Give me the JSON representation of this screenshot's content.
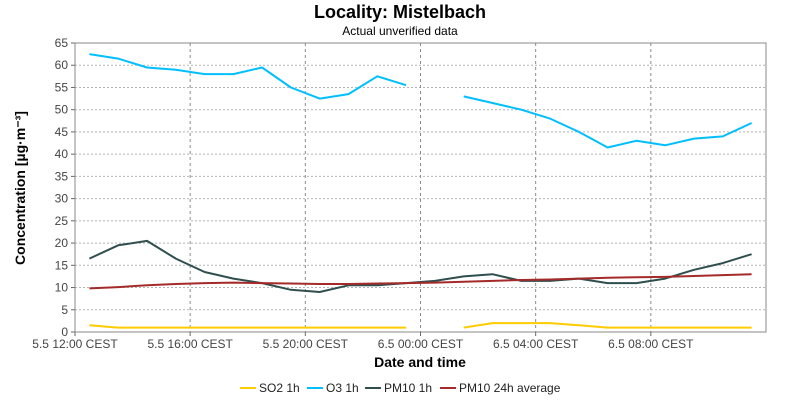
{
  "chart_data": {
    "type": "line",
    "title": "Locality: Mistelbach",
    "subtitle": "Actual unverified data",
    "xlabel": "Date and time",
    "ylabel": "Concentration [µg·m⁻³]",
    "ylim": [
      0,
      65
    ],
    "yticks": [
      0,
      5,
      10,
      15,
      20,
      25,
      30,
      35,
      40,
      45,
      50,
      55,
      60,
      65
    ],
    "xlim": [
      "5.5 12:00",
      "6.5 12:00"
    ],
    "xticks": [
      {
        "x": "5.5 12:00",
        "label": "5.5 12:00 CEST"
      },
      {
        "x": "5.5 16:00",
        "label": "5.5 16:00 CEST"
      },
      {
        "x": "5.5 20:00",
        "label": "5.5 20:00 CEST"
      },
      {
        "x": "6.5 00:00",
        "label": "6.5 00:00 CEST"
      },
      {
        "x": "6.5 04:00",
        "label": "6.5 04:00 CEST"
      },
      {
        "x": "6.5 08:00",
        "label": "6.5 08:00 CEST"
      }
    ],
    "grid": true,
    "legend_position": "bottom",
    "x": [
      "5.5 12:30",
      "5.5 13:30",
      "5.5 14:30",
      "5.5 15:30",
      "5.5 16:30",
      "5.5 17:30",
      "5.5 18:30",
      "5.5 19:30",
      "5.5 20:30",
      "5.5 21:30",
      "5.5 22:30",
      "5.5 23:30",
      "6.5 00:30",
      "6.5 01:30",
      "6.5 02:30",
      "6.5 03:30",
      "6.5 04:30",
      "6.5 05:30",
      "6.5 06:30",
      "6.5 07:30",
      "6.5 08:30",
      "6.5 09:30",
      "6.5 10:30",
      "6.5 11:30"
    ],
    "series": [
      {
        "name": "SO2 1h",
        "color": "#ffcc00",
        "values": [
          1.5,
          1,
          1,
          1,
          1,
          1,
          1,
          1,
          1,
          1,
          1,
          1,
          null,
          1,
          2,
          2,
          2,
          1.5,
          1,
          1,
          1,
          1,
          1,
          1
        ]
      },
      {
        "name": "O3 1h",
        "color": "#00bfff",
        "values": [
          62.5,
          61.5,
          59.5,
          59,
          58,
          58,
          59.5,
          55,
          52.5,
          53.5,
          57.5,
          55.5,
          null,
          53,
          51.5,
          50,
          48,
          45,
          41.5,
          43,
          42,
          43.5,
          44,
          47
        ]
      },
      {
        "name": "PM10 1h",
        "color": "#2f4f4f",
        "values": [
          16.5,
          19.5,
          20.5,
          16.5,
          13.5,
          12,
          11,
          9.5,
          9,
          10.5,
          10.5,
          11,
          11.5,
          12.5,
          13,
          11.5,
          11.5,
          12,
          11,
          11,
          12,
          14,
          15.5,
          17.5
        ]
      },
      {
        "name": "PM10 24h average",
        "color": "#a52a2a",
        "values": [
          9.8,
          10.1,
          10.5,
          10.8,
          11,
          11.1,
          11,
          10.9,
          10.8,
          10.8,
          10.9,
          11,
          11.1,
          11.3,
          11.5,
          11.7,
          11.8,
          12,
          12.2,
          12.3,
          12.4,
          12.6,
          12.8,
          13
        ]
      }
    ]
  }
}
